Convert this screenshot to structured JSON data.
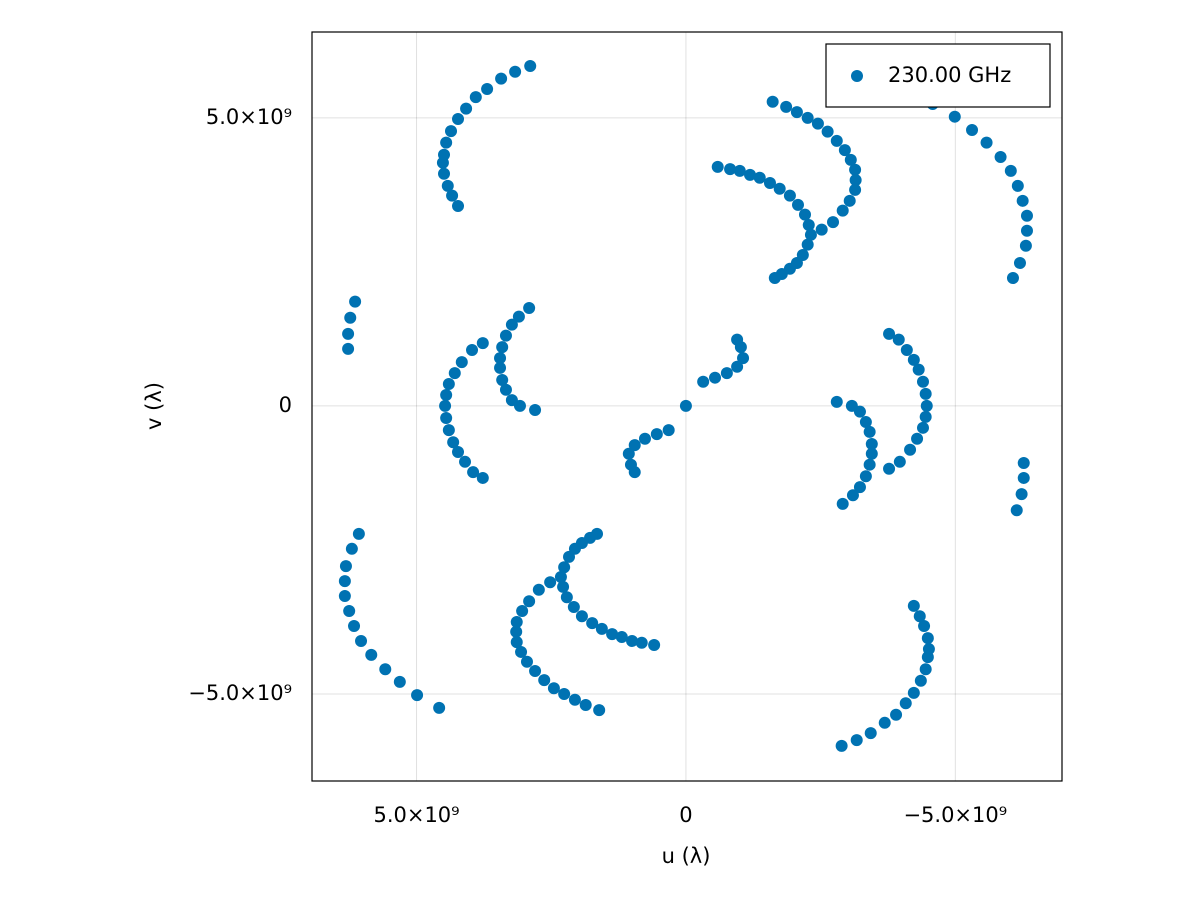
{
  "chart_data": {
    "type": "scatter",
    "xlabel": "u (λ)",
    "ylabel": "v (λ)",
    "xlim": [
      6940000000.0,
      -6980000000.0
    ],
    "ylim": [
      -6510000000.0,
      6490000000.0
    ],
    "xticks": [
      {
        "value": 5000000000.0,
        "label": "5.0×10⁹"
      },
      0,
      {
        "value": -5000000000.0,
        "label": "−5.0×10⁹"
      }
    ],
    "yticks": [
      {
        "value": -5000000000.0,
        "label": "−5.0×10⁹"
      },
      0,
      {
        "value": 5000000000.0,
        "label": "5.0×10⁹"
      }
    ],
    "grid": true,
    "legend": "upper right",
    "series": [
      {
        "name": "230.00 GHz",
        "color": "#0072b2",
        "x": [
          2890000000.0,
          3170000000.0,
          3430000000.0,
          3690000000.0,
          3900000000.0,
          4080000000.0,
          4230000000.0,
          4360000000.0,
          4450000000.0,
          4490000000.0,
          4510000000.0,
          4490000000.0,
          4420000000.0,
          4340000000.0,
          4230000000.0,
          -590000000.0,
          -820000000.0,
          -1000000000.0,
          -1190000000.0,
          -1370000000.0,
          -1560000000.0,
          -1740000000.0,
          -1930000000.0,
          -2080000000.0,
          -2210000000.0,
          -2280000000.0,
          -2320000000.0,
          -2260000000.0,
          -2170000000.0,
          -2060000000.0,
          -1930000000.0,
          -1780000000.0,
          -1650000000.0,
          -1610000000.0,
          -1860000000.0,
          -2060000000.0,
          -2260000000.0,
          -2450000000.0,
          -2630000000.0,
          -2800000000.0,
          -2950000000.0,
          -3060000000.0,
          -3140000000.0,
          -3150000000.0,
          -3140000000.0,
          -3040000000.0,
          -2910000000.0,
          -2730000000.0,
          -2520000000.0,
          -4580000000.0,
          -4990000000.0,
          -5310000000.0,
          -5580000000.0,
          -5840000000.0,
          -6030000000.0,
          -6160000000.0,
          -6250000000.0,
          -6330000000.0,
          -6330000000.0,
          -6310000000.0,
          -6200000000.0,
          -6070000000.0,
          6140000000.0,
          6230000000.0,
          6270000000.0,
          6270000000.0,
          3770000000.0,
          3970000000.0,
          4160000000.0,
          4290000000.0,
          4400000000.0,
          4450000000.0,
          4470000000.0,
          4450000000.0,
          4400000000.0,
          4320000000.0,
          4230000000.0,
          4100000000.0,
          3950000000.0,
          3770000000.0,
          2910000000.0,
          3100000000.0,
          3230000000.0,
          3340000000.0,
          3410000000.0,
          3450000000.0,
          3450000000.0,
          3410000000.0,
          3340000000.0,
          3230000000.0,
          3080000000.0,
          2800000000.0,
          -320000000.0,
          -540000000.0,
          -760000000.0,
          -950000000.0,
          -1060000000.0,
          -1020000000.0,
          -950000000.0,
          0,
          -2890000000.0,
          -3170000000.0,
          -3430000000.0,
          -3690000000.0,
          -3900000000.0,
          -4080000000.0,
          -4230000000.0,
          -4360000000.0,
          -4450000000.0,
          -4490000000.0,
          -4510000000.0,
          -4490000000.0,
          -4420000000.0,
          -4340000000.0,
          -4230000000.0,
          590000000.0,
          820000000.0,
          1000000000.0,
          1190000000.0,
          1370000000.0,
          1560000000.0,
          1740000000.0,
          1930000000.0,
          2080000000.0,
          2210000000.0,
          2280000000.0,
          2320000000.0,
          2260000000.0,
          2170000000.0,
          2060000000.0,
          1930000000.0,
          1780000000.0,
          1650000000.0,
          1610000000.0,
          1860000000.0,
          2060000000.0,
          2260000000.0,
          2450000000.0,
          2630000000.0,
          2800000000.0,
          2950000000.0,
          3060000000.0,
          3140000000.0,
          3150000000.0,
          3140000000.0,
          3040000000.0,
          2910000000.0,
          2730000000.0,
          2520000000.0,
          4580000000.0,
          4990000000.0,
          5310000000.0,
          5580000000.0,
          5840000000.0,
          6030000000.0,
          6160000000.0,
          6250000000.0,
          6330000000.0,
          6330000000.0,
          6310000000.0,
          6200000000.0,
          6070000000.0,
          -6140000000.0,
          -6230000000.0,
          -6270000000.0,
          -6270000000.0,
          -3770000000.0,
          -3970000000.0,
          -4160000000.0,
          -4290000000.0,
          -4400000000.0,
          -4450000000.0,
          -4470000000.0,
          -4450000000.0,
          -4400000000.0,
          -4320000000.0,
          -4230000000.0,
          -4100000000.0,
          -3950000000.0,
          -3770000000.0,
          -2910000000.0,
          -3100000000.0,
          -3230000000.0,
          -3340000000.0,
          -3410000000.0,
          -3450000000.0,
          -3450000000.0,
          -3410000000.0,
          -3340000000.0,
          -3230000000.0,
          -3080000000.0,
          -2800000000.0,
          320000000.0,
          540000000.0,
          760000000.0,
          950000000.0,
          1060000000.0,
          1020000000.0,
          950000000.0
        ],
        "values": [
          5900000000.0,
          5800000000.0,
          5680000000.0,
          5500000000.0,
          5360000000.0,
          5160000000.0,
          4980000000.0,
          4770000000.0,
          4570000000.0,
          4360000000.0,
          4220000000.0,
          4030000000.0,
          3820000000.0,
          3650000000.0,
          3470000000.0,
          4150000000.0,
          4110000000.0,
          4080000000.0,
          4010000000.0,
          3960000000.0,
          3870000000.0,
          3770000000.0,
          3650000000.0,
          3490000000.0,
          3320000000.0,
          3140000000.0,
          2970000000.0,
          2800000000.0,
          2620000000.0,
          2480000000.0,
          2380000000.0,
          2290000000.0,
          2220000000.0,
          5280000000.0,
          5190000000.0,
          5100000000.0,
          5000000000.0,
          4900000000.0,
          4760000000.0,
          4600000000.0,
          4440000000.0,
          4270000000.0,
          4100000000.0,
          3920000000.0,
          3750000000.0,
          3560000000.0,
          3390000000.0,
          3190000000.0,
          3060000000.0,
          5240000000.0,
          5020000000.0,
          4790000000.0,
          4570000000.0,
          4320000000.0,
          4080000000.0,
          3820000000.0,
          3560000000.0,
          3300000000.0,
          3040000000.0,
          2780000000.0,
          2480000000.0,
          2220000000.0,
          1810000000.0,
          1530000000.0,
          1250000000.0,
          990000000.0,
          1090000000.0,
          970000000.0,
          760000000.0,
          570000000.0,
          380000000.0,
          190000000.0,
          0,
          -210000000.0,
          -420000000.0,
          -630000000.0,
          -800000000.0,
          -970000000.0,
          -1150000000.0,
          -1250000000.0,
          1700000000.0,
          1550000000.0,
          1410000000.0,
          1220000000.0,
          1020000000.0,
          830000000.0,
          660000000.0,
          450000000.0,
          280000000.0,
          100000000.0,
          0,
          -70000000.0,
          420000000.0,
          490000000.0,
          570000000.0,
          680000000.0,
          830000000.0,
          1020000000.0,
          1150000000.0,
          0,
          -5900000000.0,
          -5800000000.0,
          -5680000000.0,
          -5500000000.0,
          -5360000000.0,
          -5160000000.0,
          -4980000000.0,
          -4770000000.0,
          -4570000000.0,
          -4360000000.0,
          -4220000000.0,
          -4030000000.0,
          -3820000000.0,
          -3650000000.0,
          -3470000000.0,
          -4150000000.0,
          -4110000000.0,
          -4080000000.0,
          -4010000000.0,
          -3960000000.0,
          -3870000000.0,
          -3770000000.0,
          -3650000000.0,
          -3490000000.0,
          -3320000000.0,
          -3140000000.0,
          -2970000000.0,
          -2800000000.0,
          -2620000000.0,
          -2480000000.0,
          -2380000000.0,
          -2290000000.0,
          -2220000000.0,
          -5280000000.0,
          -5190000000.0,
          -5100000000.0,
          -5000000000.0,
          -4900000000.0,
          -4760000000.0,
          -4600000000.0,
          -4440000000.0,
          -4270000000.0,
          -4100000000.0,
          -3920000000.0,
          -3750000000.0,
          -3560000000.0,
          -3390000000.0,
          -3190000000.0,
          -3060000000.0,
          -5240000000.0,
          -5020000000.0,
          -4790000000.0,
          -4570000000.0,
          -4320000000.0,
          -4080000000.0,
          -3820000000.0,
          -3560000000.0,
          -3300000000.0,
          -3040000000.0,
          -2780000000.0,
          -2480000000.0,
          -2220000000.0,
          -1810000000.0,
          -1530000000.0,
          -1250000000.0,
          -990000000.0,
          -1090000000.0,
          -970000000.0,
          -760000000.0,
          -570000000.0,
          -380000000.0,
          -190000000.0,
          0,
          210000000.0,
          420000000.0,
          630000000.0,
          800000000.0,
          970000000.0,
          1150000000.0,
          1250000000.0,
          -1700000000.0,
          -1550000000.0,
          -1410000000.0,
          -1220000000.0,
          -1020000000.0,
          -830000000.0,
          -660000000.0,
          -450000000.0,
          -280000000.0,
          -100000000.0,
          0,
          70000000.0,
          -420000000.0,
          -490000000.0,
          -570000000.0,
          -680000000.0,
          -830000000.0,
          -1020000000.0,
          -1150000000.0
        ]
      }
    ]
  }
}
